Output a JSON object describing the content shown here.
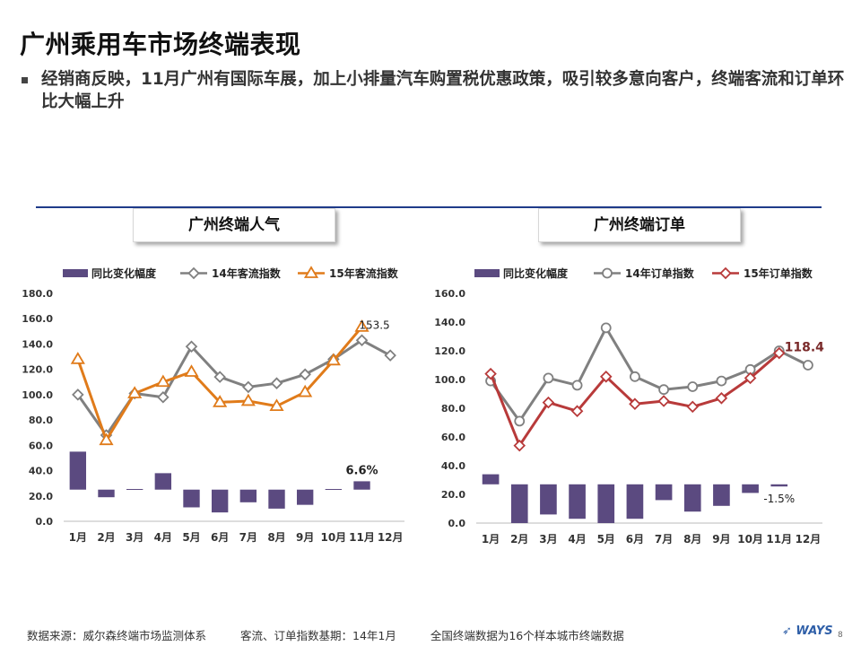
{
  "title": "广州乘用车市场终端表现",
  "bullet": "经销商反映，11月广州有国际车展，加上小排量汽车购置税优惠政策，吸引较多意向客户，终端客流和订单环比大幅上升",
  "footer": {
    "source": "数据来源：威尔森终端市场监测体系",
    "base": "客流、订单指数基期：14年1月",
    "note": "全国终端数据为16个样本城市终端数据"
  },
  "logo": "WAYS",
  "page_number": "8",
  "colors": {
    "bar": "#5b4a80",
    "series14": "#808080",
    "series15_left": "#e07b1a",
    "series15_right": "#b83a3a",
    "divider": "#1f3b8a"
  },
  "chart_data": [
    {
      "type": "bar+line",
      "title": "广州终端人气",
      "categories": [
        "1月",
        "2月",
        "3月",
        "4月",
        "5月",
        "6月",
        "7月",
        "8月",
        "9月",
        "10月",
        "11月",
        "12月"
      ],
      "yticks": [
        "0.0",
        "20.0",
        "40.0",
        "60.0",
        "80.0",
        "100.0",
        "120.0",
        "140.0",
        "160.0",
        "180.0"
      ],
      "ylim": [
        0,
        180
      ],
      "bar_base": 25,
      "legend_position": "top",
      "bar_series": {
        "name": "同比变化幅度",
        "values": [
          30,
          -6,
          0.5,
          13,
          -14,
          -18,
          -10,
          -15,
          -12,
          0.5,
          6.6,
          null
        ]
      },
      "series": [
        {
          "name": "14年客流指数",
          "values": [
            100,
            68,
            101,
            98,
            138,
            114,
            106,
            109,
            116,
            128,
            143,
            131
          ]
        },
        {
          "name": "15年客流指数",
          "values": [
            128,
            64,
            101,
            110,
            118,
            94,
            95,
            91,
            102,
            127,
            153.5,
            null
          ]
        }
      ],
      "annotations": [
        {
          "text": "153.5",
          "series": 1,
          "index": 10
        },
        {
          "text": "6.6%",
          "series": "bar",
          "index": 10
        }
      ]
    },
    {
      "type": "bar+line",
      "title": "广州终端订单",
      "categories": [
        "1月",
        "2月",
        "3月",
        "4月",
        "5月",
        "6月",
        "7月",
        "8月",
        "9月",
        "10月",
        "11月",
        "12月"
      ],
      "yticks": [
        "0.0",
        "20.0",
        "40.0",
        "60.0",
        "80.0",
        "100.0",
        "120.0",
        "140.0",
        "160.0"
      ],
      "ylim": [
        0,
        160
      ],
      "bar_base": 27,
      "legend_position": "top",
      "bar_series": {
        "name": "同比变化幅度",
        "values": [
          7,
          -27,
          -21,
          -24,
          -27,
          -24,
          -11,
          -19,
          -15,
          -6,
          -1.5,
          null
        ]
      },
      "series": [
        {
          "name": "14年订单指数",
          "values": [
            99,
            71,
            101,
            96,
            136,
            102,
            93,
            95,
            99,
            107,
            120,
            110
          ]
        },
        {
          "name": "15年订单指数",
          "values": [
            104,
            54,
            84,
            78,
            102,
            83,
            85,
            81,
            87,
            101,
            118.4,
            null
          ]
        }
      ],
      "annotations": [
        {
          "text": "118.4",
          "series": 1,
          "index": 10
        },
        {
          "text": "-1.5%",
          "series": "bar",
          "index": 10
        }
      ]
    }
  ]
}
